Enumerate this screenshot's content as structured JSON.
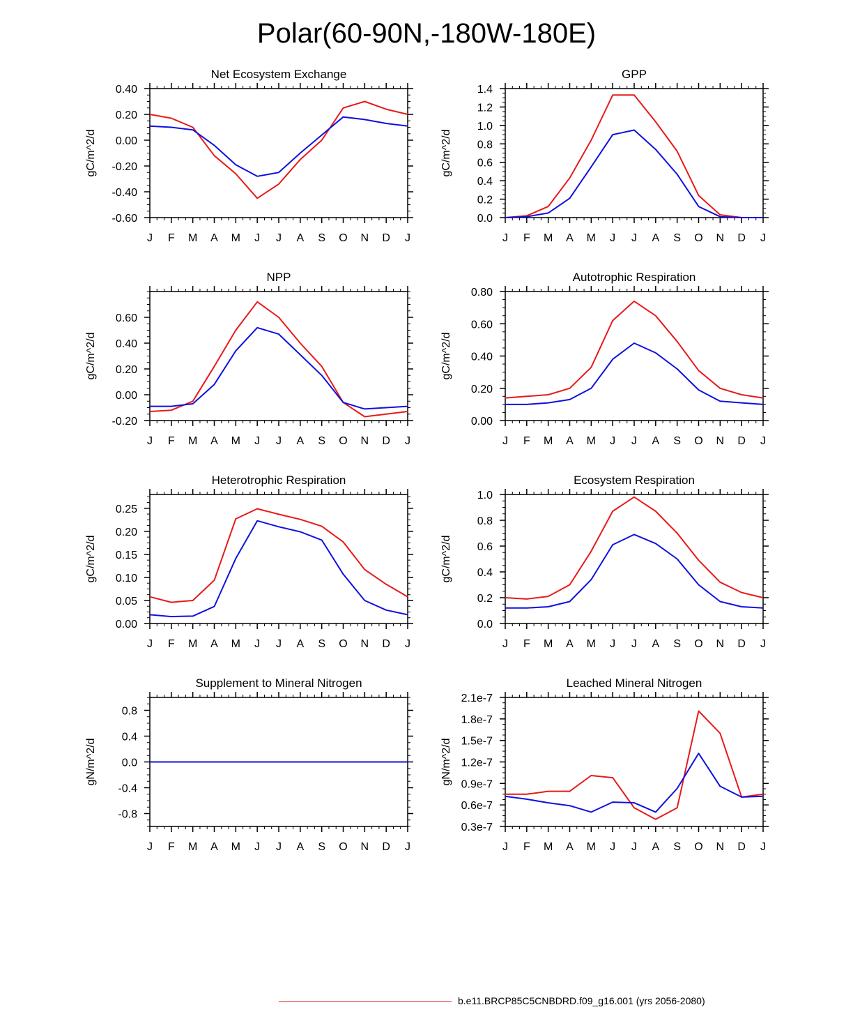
{
  "title": "Polar(60-90N,-180W-180E)",
  "legend": {
    "label": "b.e11.BRCP85C5CNBDRD.f09_g16.001 (yrs 2056-2080)",
    "color": "#e8191a"
  },
  "colors": {
    "series_red": "#e8191a",
    "series_blue": "#1010e0"
  },
  "chart_data": [
    {
      "type": "line",
      "title": "Net Ecosystem Exchange",
      "ylabel": "gC/m^2/d",
      "categories": [
        "J",
        "F",
        "M",
        "A",
        "M",
        "J",
        "J",
        "A",
        "S",
        "O",
        "N",
        "D",
        "J"
      ],
      "ylim": [
        -0.6,
        0.4
      ],
      "yticks": [
        -0.6,
        -0.4,
        -0.2,
        0.0,
        0.2,
        0.4
      ],
      "ytick_labels": [
        "-0.60",
        "-0.40",
        "-0.20",
        "0.00",
        "0.20",
        "0.40"
      ],
      "series": [
        {
          "color": "#e8191a",
          "values": [
            0.2,
            0.17,
            0.1,
            -0.12,
            -0.26,
            -0.45,
            -0.34,
            -0.15,
            0.0,
            0.25,
            0.3,
            0.24,
            0.2
          ]
        },
        {
          "color": "#1010e0",
          "values": [
            0.11,
            0.1,
            0.08,
            -0.04,
            -0.19,
            -0.28,
            -0.25,
            -0.1,
            0.04,
            0.18,
            0.16,
            0.13,
            0.11
          ]
        }
      ]
    },
    {
      "type": "line",
      "title": "GPP",
      "ylabel": "gC/m^2/d",
      "categories": [
        "J",
        "F",
        "M",
        "A",
        "M",
        "J",
        "J",
        "A",
        "S",
        "O",
        "N",
        "D",
        "J"
      ],
      "ylim": [
        0.0,
        1.4
      ],
      "yticks": [
        0.0,
        0.2,
        0.4,
        0.6,
        0.8,
        1.0,
        1.2,
        1.4
      ],
      "ytick_labels": [
        "0.0",
        "0.2",
        "0.4",
        "0.6",
        "0.8",
        "1.0",
        "1.2",
        "1.4"
      ],
      "series": [
        {
          "color": "#e8191a",
          "values": [
            0.0,
            0.02,
            0.12,
            0.43,
            0.84,
            1.33,
            1.33,
            1.04,
            0.72,
            0.24,
            0.03,
            0.0,
            0.0
          ]
        },
        {
          "color": "#1010e0",
          "values": [
            0.0,
            0.01,
            0.05,
            0.21,
            0.55,
            0.9,
            0.95,
            0.74,
            0.47,
            0.12,
            0.01,
            0.0,
            0.0
          ]
        }
      ]
    },
    {
      "type": "line",
      "title": "NPP",
      "ylabel": "gC/m^2/d",
      "categories": [
        "J",
        "F",
        "M",
        "A",
        "M",
        "J",
        "J",
        "A",
        "S",
        "O",
        "N",
        "D",
        "J"
      ],
      "ylim": [
        -0.2,
        0.8
      ],
      "yticks": [
        -0.2,
        0.0,
        0.2,
        0.4,
        0.6
      ],
      "ytick_labels": [
        "-0.20",
        "0.00",
        "0.20",
        "0.40",
        "0.60"
      ],
      "series": [
        {
          "color": "#e8191a",
          "values": [
            -0.13,
            -0.12,
            -0.05,
            0.22,
            0.5,
            0.72,
            0.6,
            0.4,
            0.22,
            -0.06,
            -0.17,
            -0.15,
            -0.13
          ]
        },
        {
          "color": "#1010e0",
          "values": [
            -0.09,
            -0.09,
            -0.07,
            0.08,
            0.34,
            0.52,
            0.47,
            0.31,
            0.15,
            -0.06,
            -0.11,
            -0.1,
            -0.09
          ]
        }
      ]
    },
    {
      "type": "line",
      "title": "Autotrophic Respiration",
      "ylabel": "gC/m^2/d",
      "categories": [
        "J",
        "F",
        "M",
        "A",
        "M",
        "J",
        "J",
        "A",
        "S",
        "O",
        "N",
        "D",
        "J"
      ],
      "ylim": [
        0.0,
        0.8
      ],
      "yticks": [
        0.0,
        0.2,
        0.4,
        0.6,
        0.8
      ],
      "ytick_labels": [
        "0.00",
        "0.20",
        "0.40",
        "0.60",
        "0.80"
      ],
      "series": [
        {
          "color": "#e8191a",
          "values": [
            0.14,
            0.15,
            0.16,
            0.2,
            0.33,
            0.62,
            0.74,
            0.65,
            0.49,
            0.31,
            0.2,
            0.16,
            0.14
          ]
        },
        {
          "color": "#1010e0",
          "values": [
            0.1,
            0.1,
            0.11,
            0.13,
            0.2,
            0.38,
            0.48,
            0.42,
            0.32,
            0.19,
            0.12,
            0.11,
            0.1
          ]
        }
      ]
    },
    {
      "type": "line",
      "title": "Heterotrophic Respiration",
      "ylabel": "gC/m^2/d",
      "categories": [
        "J",
        "F",
        "M",
        "A",
        "M",
        "J",
        "J",
        "A",
        "S",
        "O",
        "N",
        "D",
        "J"
      ],
      "ylim": [
        0.0,
        0.28
      ],
      "yticks": [
        0.0,
        0.05,
        0.1,
        0.15,
        0.2,
        0.25
      ],
      "ytick_labels": [
        "0.00",
        "0.05",
        "0.10",
        "0.15",
        "0.20",
        "0.25"
      ],
      "series": [
        {
          "color": "#e8191a",
          "values": [
            0.058,
            0.046,
            0.05,
            0.094,
            0.227,
            0.249,
            0.237,
            0.226,
            0.211,
            0.177,
            0.117,
            0.085,
            0.058
          ]
        },
        {
          "color": "#1010e0",
          "values": [
            0.019,
            0.015,
            0.016,
            0.037,
            0.141,
            0.223,
            0.21,
            0.199,
            0.181,
            0.107,
            0.05,
            0.029,
            0.019
          ]
        }
      ]
    },
    {
      "type": "line",
      "title": "Ecosystem Respiration",
      "ylabel": "gC/m^2/d",
      "categories": [
        "J",
        "F",
        "M",
        "A",
        "M",
        "J",
        "J",
        "A",
        "S",
        "O",
        "N",
        "D",
        "J"
      ],
      "ylim": [
        0.0,
        1.0
      ],
      "yticks": [
        0.0,
        0.2,
        0.4,
        0.6,
        0.8,
        1.0
      ],
      "ytick_labels": [
        "0.0",
        "0.2",
        "0.4",
        "0.6",
        "0.8",
        "1.0"
      ],
      "series": [
        {
          "color": "#e8191a",
          "values": [
            0.2,
            0.19,
            0.21,
            0.3,
            0.56,
            0.87,
            0.98,
            0.87,
            0.7,
            0.49,
            0.32,
            0.24,
            0.2
          ]
        },
        {
          "color": "#1010e0",
          "values": [
            0.12,
            0.12,
            0.13,
            0.17,
            0.34,
            0.61,
            0.69,
            0.62,
            0.5,
            0.3,
            0.17,
            0.13,
            0.12
          ]
        }
      ]
    },
    {
      "type": "line",
      "title": "Supplement to Mineral Nitrogen",
      "ylabel": "gN/m^2/d",
      "categories": [
        "J",
        "F",
        "M",
        "A",
        "M",
        "J",
        "J",
        "A",
        "S",
        "O",
        "N",
        "D",
        "J"
      ],
      "ylim": [
        -1.0,
        1.0
      ],
      "yticks": [
        -0.8,
        -0.4,
        0.0,
        0.4,
        0.8
      ],
      "ytick_labels": [
        "-0.8",
        "-0.4",
        "0.0",
        "0.4",
        "0.8"
      ],
      "series": [
        {
          "color": "#e8191a",
          "values": [
            0,
            0,
            0,
            0,
            0,
            0,
            0,
            0,
            0,
            0,
            0,
            0,
            0
          ]
        },
        {
          "color": "#1010e0",
          "values": [
            0,
            0,
            0,
            0,
            0,
            0,
            0,
            0,
            0,
            0,
            0,
            0,
            0
          ]
        }
      ]
    },
    {
      "type": "line",
      "title": "Leached Mineral Nitrogen",
      "ylabel": "gN/m^2/d",
      "categories": [
        "J",
        "F",
        "M",
        "A",
        "M",
        "J",
        "J",
        "A",
        "S",
        "O",
        "N",
        "D",
        "J"
      ],
      "ylim": [
        3e-08,
        2.1e-07
      ],
      "yticks": [
        3e-08,
        6e-08,
        9e-08,
        1.2e-07,
        1.5e-07,
        1.8e-07,
        2.1e-07
      ],
      "ytick_labels": [
        "0.3e-7",
        "0.6e-7",
        "0.9e-7",
        "1.2e-7",
        "1.5e-7",
        "1.8e-7",
        "2.1e-7"
      ],
      "series": [
        {
          "color": "#e8191a",
          "values": [
            7.5e-08,
            7.5e-08,
            7.9e-08,
            7.9e-08,
            1.01e-07,
            9.8e-08,
            5.6e-08,
            4e-08,
            5.6e-08,
            1.91e-07,
            1.6e-07,
            7.1e-08,
            7.5e-08
          ]
        },
        {
          "color": "#1010e0",
          "values": [
            7.2e-08,
            6.8e-08,
            6.3e-08,
            5.9e-08,
            5e-08,
            6.4e-08,
            6.3e-08,
            5e-08,
            8.3e-08,
            1.32e-07,
            8.6e-08,
            7.1e-08,
            7.2e-08
          ]
        }
      ]
    }
  ]
}
